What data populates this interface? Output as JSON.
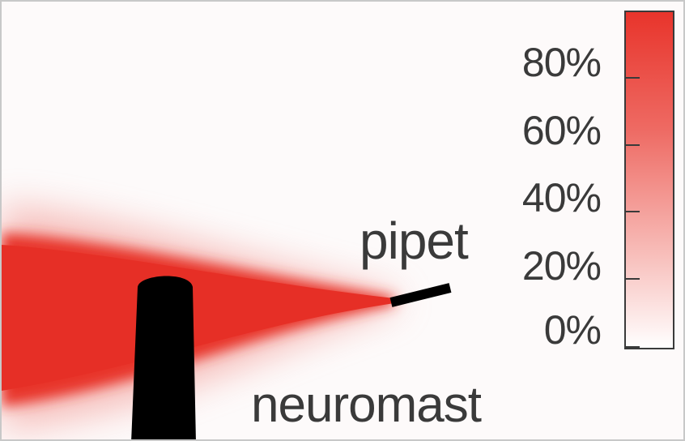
{
  "labels": {
    "pipet": "pipet",
    "neuromast": "neuromast"
  },
  "colorbar": {
    "ticks": [
      "80%",
      "60%",
      "40%",
      "20%",
      "0%"
    ],
    "color_high": "#e8342b",
    "color_low": "#ffffff"
  },
  "colors": {
    "plume": "#e8342b",
    "structures": "#000000",
    "background": "#fdfafa"
  }
}
